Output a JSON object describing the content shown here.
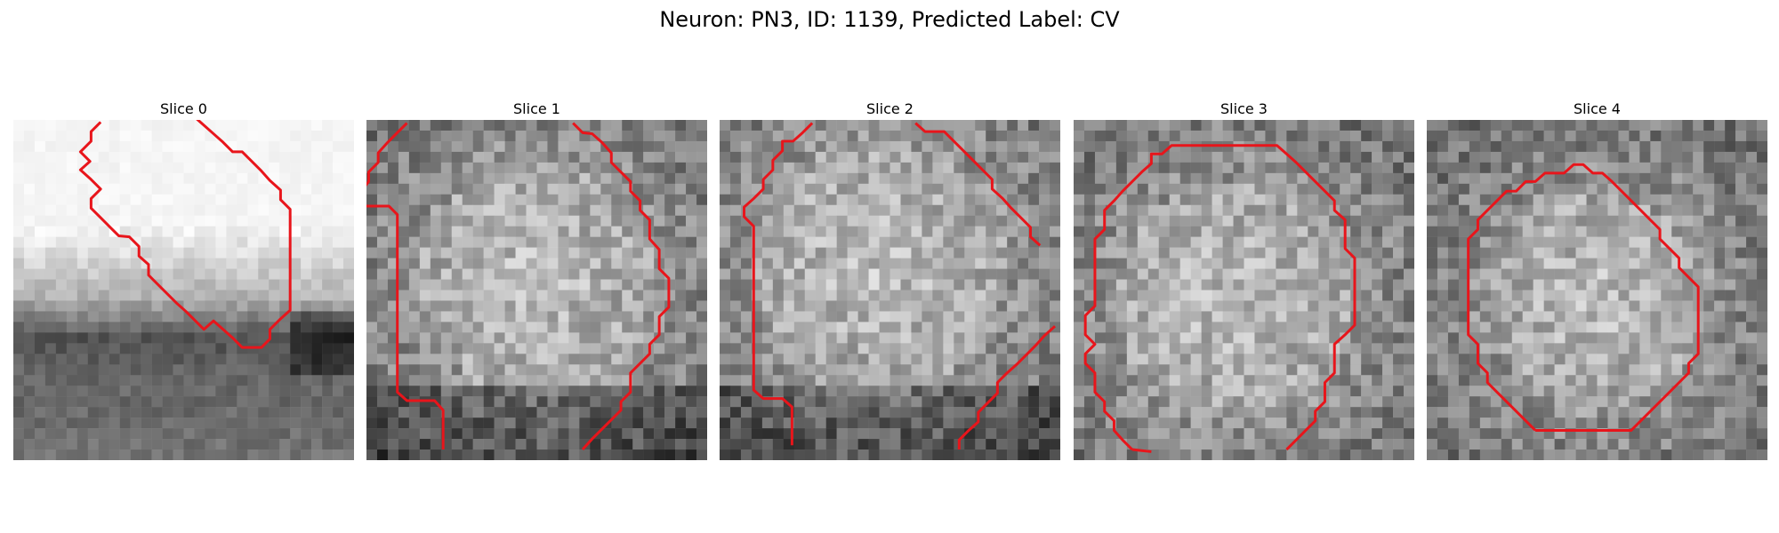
{
  "figure": {
    "title": "Neuron: PN3, ID: 1139, Predicted Label: CV"
  },
  "panels": [
    {
      "title": "Slice 0"
    },
    {
      "title": "Slice 1"
    },
    {
      "title": "Slice 2"
    },
    {
      "title": "Slice 3"
    },
    {
      "title": "Slice 4"
    }
  ],
  "colors": {
    "contour": "#e8151b",
    "background": "#ffffff"
  }
}
